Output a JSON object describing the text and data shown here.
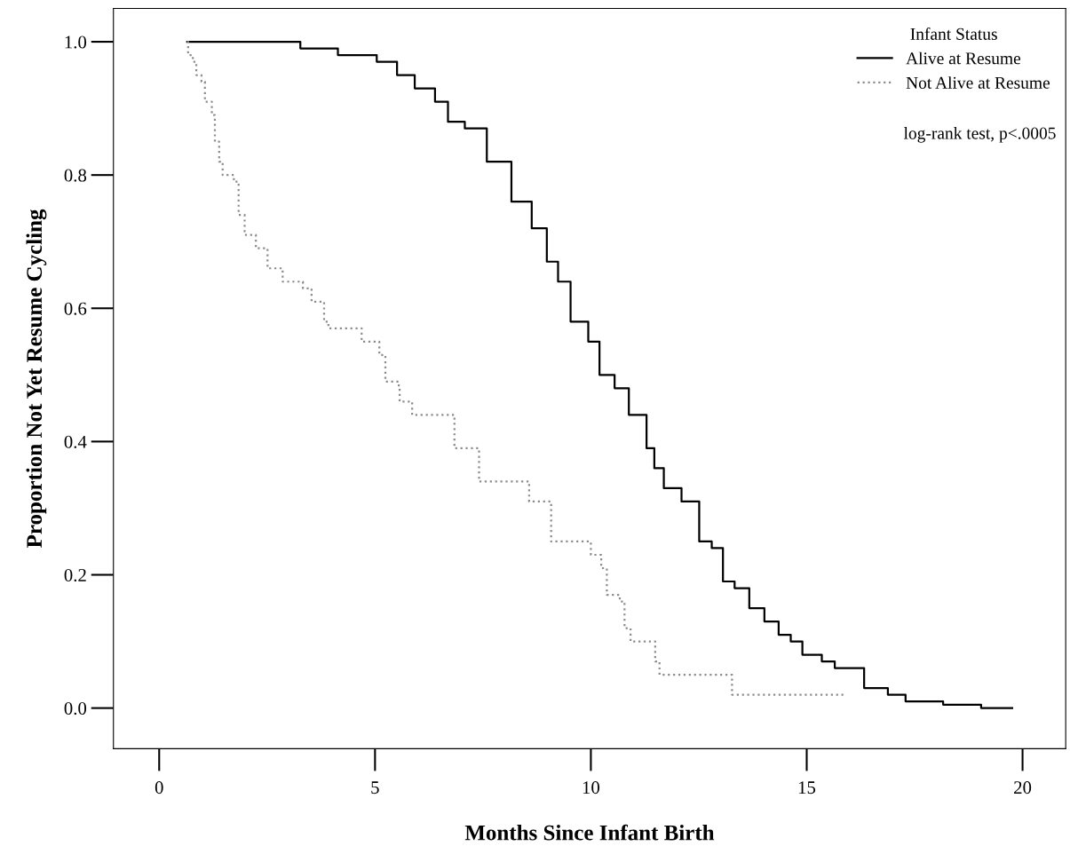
{
  "chart_data": {
    "type": "step",
    "xlabel": "Months Since Infant Birth",
    "ylabel": "Proportion Not Yet Resume Cycling",
    "legend_title": "Infant Status",
    "legend": "top right",
    "grid": false,
    "marker": "none",
    "annotations": [
      "log-rank test, p<.0005"
    ],
    "xlim": [
      -1.06,
      21.0
    ],
    "xticks": [
      0,
      5,
      10,
      15,
      20
    ],
    "ylim": [
      -0.061,
      1.05
    ],
    "yticks": [
      {
        "value": 0,
        "label": "0.0"
      },
      {
        "value": 0.2,
        "label": "0.2"
      },
      {
        "value": 0.4,
        "label": "0.4"
      },
      {
        "value": 0.6,
        "label": "0.6"
      },
      {
        "value": 0.8,
        "label": "0.8"
      },
      {
        "value": 1.0,
        "label": "1.0"
      }
    ],
    "series": [
      {
        "name": "Alive at Resume",
        "color": "#000000",
        "line_style": "solid",
        "x": [
          0.65,
          3.16,
          3.27,
          3.73,
          4.14,
          4.84,
          5.04,
          5.51,
          5.92,
          6.39,
          6.69,
          7.08,
          7.59,
          8.16,
          8.43,
          8.63,
          8.98,
          9.24,
          9.53,
          9.94,
          10.2,
          10.55,
          10.88,
          11.29,
          11.47,
          11.69,
          12.1,
          12.51,
          12.8,
          13.06,
          13.33,
          13.67,
          14.02,
          14.35,
          14.63,
          14.9,
          15.27,
          15.35,
          15.65,
          16.33,
          16.88,
          17.29,
          18.16,
          19.04,
          19.76
        ],
        "values": [
          1.0,
          1.0,
          0.99,
          0.99,
          0.98,
          0.98,
          0.97,
          0.95,
          0.93,
          0.91,
          0.88,
          0.87,
          0.82,
          0.76,
          0.76,
          0.72,
          0.67,
          0.64,
          0.58,
          0.55,
          0.5,
          0.48,
          0.44,
          0.39,
          0.36,
          0.33,
          0.31,
          0.25,
          0.24,
          0.19,
          0.18,
          0.15,
          0.13,
          0.11,
          0.1,
          0.08,
          0.08,
          0.07,
          0.06,
          0.03,
          0.02,
          0.01,
          0.005,
          0.0,
          0.0
        ]
      },
      {
        "name": "Not Alive at Resume",
        "color": "#8c8c8c",
        "line_style": "dotted",
        "x": [
          0.65,
          0.67,
          0.78,
          0.86,
          0.98,
          1.06,
          1.22,
          1.29,
          1.39,
          1.47,
          1.73,
          1.84,
          1.98,
          2.24,
          2.51,
          2.86,
          3.33,
          3.53,
          3.82,
          3.92,
          4.55,
          4.69,
          5.0,
          5.1,
          5.24,
          5.55,
          5.57,
          5.86,
          6.8,
          6.84,
          7.41,
          7.41,
          8.51,
          8.57,
          8.94,
          9.08,
          9.94,
          10.0,
          10.24,
          10.37,
          10.67,
          10.78,
          10.92,
          11.43,
          11.49,
          11.59,
          13.2,
          13.27,
          15.88
        ],
        "values": [
          1.0,
          0.98,
          0.97,
          0.95,
          0.94,
          0.91,
          0.89,
          0.85,
          0.82,
          0.8,
          0.79,
          0.74,
          0.71,
          0.69,
          0.66,
          0.64,
          0.63,
          0.61,
          0.58,
          0.57,
          0.57,
          0.55,
          0.55,
          0.53,
          0.49,
          0.48,
          0.46,
          0.44,
          0.44,
          0.39,
          0.37,
          0.34,
          0.34,
          0.31,
          0.31,
          0.25,
          0.25,
          0.23,
          0.21,
          0.17,
          0.16,
          0.12,
          0.1,
          0.1,
          0.07,
          0.05,
          0.05,
          0.02,
          0.02
        ]
      }
    ]
  }
}
